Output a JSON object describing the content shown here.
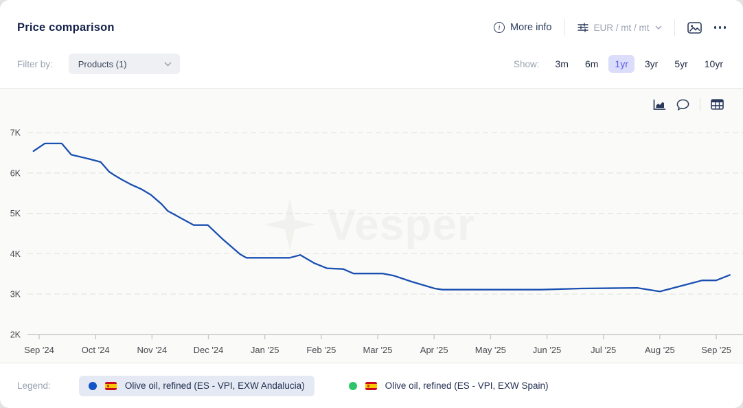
{
  "header": {
    "title": "Price comparison",
    "more_info_label": "More info",
    "unit_selector": "EUR / mt / mt"
  },
  "filter_bar": {
    "filter_by_label": "Filter by:",
    "products_dropdown": "Products (1)",
    "show_label": "Show:",
    "ranges": [
      "3m",
      "6m",
      "1yr",
      "3yr",
      "5yr",
      "10yr"
    ],
    "selected_range": "1yr"
  },
  "chart_toolbar": {
    "icons": [
      "area-chart",
      "comment",
      "table"
    ]
  },
  "watermark": "Vesper",
  "chart_data": {
    "type": "line",
    "title": "Price comparison",
    "unit": "EUR / mt",
    "grid": "dashed-horizontal",
    "x_axis": {
      "tick_labels": [
        "Sep '24",
        "Oct '24",
        "Nov '24",
        "Dec '24",
        "Jan '25",
        "Feb '25",
        "Mar '25",
        "Apr '25",
        "May '25",
        "Jun '25",
        "Jul '25",
        "Aug '25",
        "Sep '25"
      ],
      "x_unit": "months_after_sep_2024_tick"
    },
    "y_axis": {
      "tick_labels": [
        "2K",
        "3K",
        "4K",
        "5K",
        "6K",
        "7K"
      ],
      "tick_values": [
        2000,
        3000,
        4000,
        5000,
        6000,
        7000
      ],
      "range": [
        2000,
        7300
      ]
    },
    "series": [
      {
        "name": "Olive oil, refined (ES - VPI, EXW Andalucia)",
        "color": "#1a4fb2",
        "visible": true,
        "points": [
          [
            -0.1,
            6540
          ],
          [
            0.1,
            6730
          ],
          [
            0.4,
            6730
          ],
          [
            0.57,
            6450
          ],
          [
            0.89,
            6345
          ],
          [
            1.09,
            6270
          ],
          [
            1.24,
            6030
          ],
          [
            1.35,
            5930
          ],
          [
            1.46,
            5840
          ],
          [
            1.62,
            5720
          ],
          [
            1.81,
            5600
          ],
          [
            1.98,
            5460
          ],
          [
            2.17,
            5230
          ],
          [
            2.28,
            5060
          ],
          [
            2.45,
            4930
          ],
          [
            2.74,
            4710
          ],
          [
            2.99,
            4710
          ],
          [
            3.26,
            4350
          ],
          [
            3.56,
            3990
          ],
          [
            3.67,
            3900
          ],
          [
            4.44,
            3900
          ],
          [
            4.63,
            3970
          ],
          [
            4.87,
            3770
          ],
          [
            5.1,
            3640
          ],
          [
            5.39,
            3620
          ],
          [
            5.57,
            3510
          ],
          [
            6.09,
            3510
          ],
          [
            6.28,
            3460
          ],
          [
            6.6,
            3310
          ],
          [
            7.01,
            3140
          ],
          [
            7.15,
            3110
          ],
          [
            8.9,
            3110
          ],
          [
            9.6,
            3140
          ],
          [
            10.3,
            3150
          ],
          [
            10.6,
            3155
          ],
          [
            11.0,
            3065
          ],
          [
            11.75,
            3340
          ],
          [
            12.0,
            3340
          ],
          [
            12.24,
            3475
          ]
        ]
      },
      {
        "name": "Olive oil, refined (ES - VPI, EXW Spain)",
        "color": "#2cc56a",
        "visible": false,
        "points": []
      }
    ]
  },
  "legend": {
    "label": "Legend:",
    "items": [
      {
        "name": "Olive oil, refined (ES - VPI, EXW Andalucia)",
        "color": "#1453c5",
        "flag": "spain",
        "highlighted": true
      },
      {
        "name": "Olive oil, refined (ES - VPI, EXW Spain)",
        "color": "#2cc56a",
        "flag": "spain",
        "highlighted": false
      }
    ]
  },
  "colors": {
    "line_blue": "#1a4fb2",
    "legend_green": "#2cc56a",
    "selected_range_bg": "#dcddfa",
    "selected_range_text": "#5558e5",
    "navy_text": "#14224a",
    "chart_bg": "#fafaf8"
  }
}
